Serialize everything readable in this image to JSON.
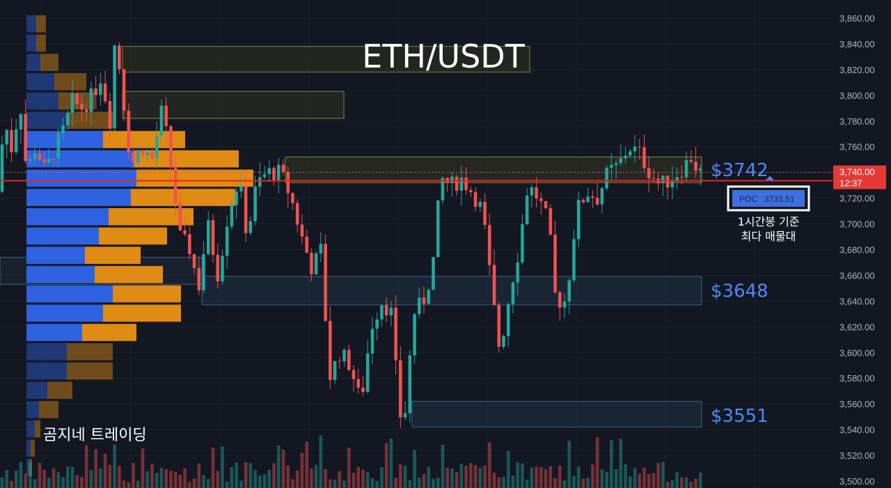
{
  "chart_data": {
    "type": "candlestick",
    "title": "ETH/USDT",
    "watermark": "곰지네 트레이딩",
    "ylim": [
      3500,
      3865
    ],
    "y_ticks": [
      "3,860.00",
      "3,840.00",
      "3,820.00",
      "3,800.00",
      "3,780.00",
      "3,760.00",
      "3,740.00",
      "3,720.00",
      "3,700.00",
      "3,680.00",
      "3,660.00",
      "3,640.00",
      "3,620.00",
      "3,600.00",
      "3,580.00",
      "3,560.00",
      "3,540.00",
      "3,520.00",
      "3,500.00"
    ],
    "y_tick_values": [
      3860,
      3840,
      3820,
      3800,
      3780,
      3760,
      3740,
      3720,
      3700,
      3680,
      3660,
      3640,
      3620,
      3600,
      3580,
      3560,
      3540,
      3520,
      3500
    ],
    "last_price": {
      "label": "3,740.00",
      "value": 3740,
      "countdown": "12:37"
    },
    "poc": {
      "label": "POC",
      "value_label": "3733.51",
      "value": 3733.51,
      "note_line1": "1시간봉 기준",
      "note_line2": "최다 매물대"
    },
    "levels": [
      {
        "label": "$3742",
        "low": 3732,
        "high": 3752
      },
      {
        "label": "$3648",
        "low": 3637,
        "high": 3659
      },
      {
        "label": "$3551",
        "low": 3542,
        "high": 3562
      }
    ],
    "upper_zones": [
      {
        "low": 3818,
        "high": 3838
      },
      {
        "low": 3782,
        "high": 3803
      }
    ],
    "volume_profile": [
      {
        "price": 3855,
        "buy": 14,
        "sell": 14
      },
      {
        "price": 3840,
        "buy": 14,
        "sell": 14
      },
      {
        "price": 3825,
        "buy": 20,
        "sell": 26
      },
      {
        "price": 3810,
        "buy": 40,
        "sell": 46
      },
      {
        "price": 3795,
        "buy": 46,
        "sell": 52
      },
      {
        "price": 3780,
        "buy": 60,
        "sell": 64
      },
      {
        "price": 3765,
        "buy": 110,
        "sell": 118
      },
      {
        "price": 3750,
        "buy": 155,
        "sell": 150
      },
      {
        "price": 3735,
        "buy": 158,
        "sell": 168
      },
      {
        "price": 3720,
        "buy": 150,
        "sell": 150
      },
      {
        "price": 3705,
        "buy": 118,
        "sell": 122
      },
      {
        "price": 3690,
        "buy": 104,
        "sell": 98
      },
      {
        "price": 3675,
        "buy": 84,
        "sell": 80
      },
      {
        "price": 3660,
        "buy": 98,
        "sell": 98
      },
      {
        "price": 3645,
        "buy": 124,
        "sell": 98
      },
      {
        "price": 3630,
        "buy": 110,
        "sell": 112
      },
      {
        "price": 3615,
        "buy": 80,
        "sell": 78
      },
      {
        "price": 3600,
        "buy": 58,
        "sell": 66
      },
      {
        "price": 3585,
        "buy": 58,
        "sell": 66
      },
      {
        "price": 3570,
        "buy": 30,
        "sell": 36
      },
      {
        "price": 3555,
        "buy": 18,
        "sell": 28
      },
      {
        "price": 3540,
        "buy": 12,
        "sell": 8
      },
      {
        "price": 3525,
        "buy": 6,
        "sell": 6
      },
      {
        "price": 3510,
        "buy": 4,
        "sell": 4
      }
    ],
    "anchors": [
      [
        0,
        3725
      ],
      [
        14,
        3778
      ],
      [
        25,
        3755
      ],
      [
        35,
        3800
      ],
      [
        45,
        3740
      ],
      [
        58,
        3760
      ],
      [
        72,
        3740
      ],
      [
        85,
        3758
      ],
      [
        100,
        3775
      ],
      [
        110,
        3795
      ],
      [
        125,
        3790
      ],
      [
        140,
        3800
      ],
      [
        152,
        3815
      ],
      [
        165,
        3780
      ],
      [
        172,
        3845
      ],
      [
        180,
        3815
      ],
      [
        195,
        3745
      ],
      [
        210,
        3760
      ],
      [
        225,
        3750
      ],
      [
        240,
        3790
      ],
      [
        255,
        3735
      ],
      [
        265,
        3690
      ],
      [
        280,
        3680
      ],
      [
        292,
        3650
      ],
      [
        305,
        3700
      ],
      [
        320,
        3660
      ],
      [
        335,
        3710
      ],
      [
        350,
        3735
      ],
      [
        362,
        3690
      ],
      [
        375,
        3730
      ],
      [
        390,
        3740
      ],
      [
        410,
        3740
      ],
      [
        425,
        3720
      ],
      [
        440,
        3690
      ],
      [
        455,
        3665
      ],
      [
        468,
        3680
      ],
      [
        480,
        3580
      ],
      [
        495,
        3600
      ],
      [
        510,
        3590
      ],
      [
        525,
        3560
      ],
      [
        540,
        3620
      ],
      [
        555,
        3640
      ],
      [
        570,
        3630
      ],
      [
        580,
        3550
      ],
      [
        590,
        3555
      ],
      [
        600,
        3630
      ],
      [
        615,
        3640
      ],
      [
        628,
        3665
      ],
      [
        640,
        3735
      ],
      [
        655,
        3730
      ],
      [
        670,
        3735
      ],
      [
        685,
        3725
      ],
      [
        700,
        3710
      ],
      [
        715,
        3640
      ],
      [
        725,
        3600
      ],
      [
        740,
        3650
      ],
      [
        752,
        3680
      ],
      [
        765,
        3730
      ],
      [
        780,
        3720
      ],
      [
        795,
        3700
      ],
      [
        805,
        3640
      ],
      [
        820,
        3640
      ],
      [
        835,
        3710
      ],
      [
        850,
        3725
      ],
      [
        865,
        3720
      ],
      [
        880,
        3740
      ],
      [
        895,
        3745
      ],
      [
        910,
        3760
      ],
      [
        925,
        3755
      ],
      [
        940,
        3740
      ],
      [
        955,
        3730
      ],
      [
        970,
        3735
      ],
      [
        985,
        3742
      ],
      [
        1000,
        3752
      ],
      [
        1010,
        3740
      ]
    ],
    "candle_count": 150
  }
}
